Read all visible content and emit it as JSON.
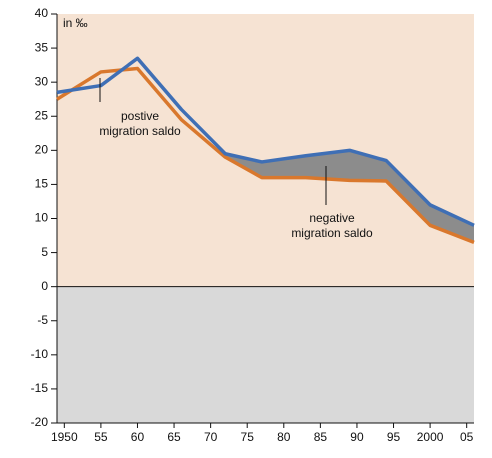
{
  "chart_data": {
    "type": "line",
    "unit_label": "in ‰",
    "x": [
      1949,
      1955,
      1960,
      1966,
      1972,
      1977,
      1983,
      1989,
      1994,
      2000,
      2006
    ],
    "series": [
      {
        "name": "blue",
        "color": "#3f6fb5",
        "values": [
          28.5,
          29.5,
          33.5,
          26,
          19.5,
          18.3,
          19.2,
          20,
          18.5,
          12,
          9
        ]
      },
      {
        "name": "orange",
        "color": "#d9782d",
        "values": [
          27.5,
          31.5,
          32,
          24.5,
          19,
          16,
          16,
          15.6,
          15.5,
          9,
          6.5
        ]
      }
    ],
    "annotations": [
      {
        "lines": [
          "postive",
          "migration saldo"
        ]
      },
      {
        "lines": [
          "negative",
          "migration saldo"
        ]
      }
    ],
    "xlim": [
      1949,
      2006
    ],
    "xticks": [
      1950,
      {
        "value": 1955,
        "label": "55"
      },
      {
        "value": 1960,
        "label": "60"
      },
      {
        "value": 1965,
        "label": "65"
      },
      {
        "value": 1970,
        "label": "70"
      },
      {
        "value": 1975,
        "label": "75"
      },
      {
        "value": 1980,
        "label": "80"
      },
      {
        "value": 1985,
        "label": "85"
      },
      {
        "value": 1990,
        "label": "90"
      },
      {
        "value": 1995,
        "label": "95"
      },
      {
        "value": 2000,
        "label": "2000"
      },
      {
        "value": 2005,
        "label": "05"
      }
    ],
    "ylim": [
      -20,
      40
    ],
    "yticks": [
      -20,
      -15,
      -10,
      -5,
      0,
      5,
      10,
      15,
      20,
      25,
      30,
      35,
      40
    ]
  }
}
